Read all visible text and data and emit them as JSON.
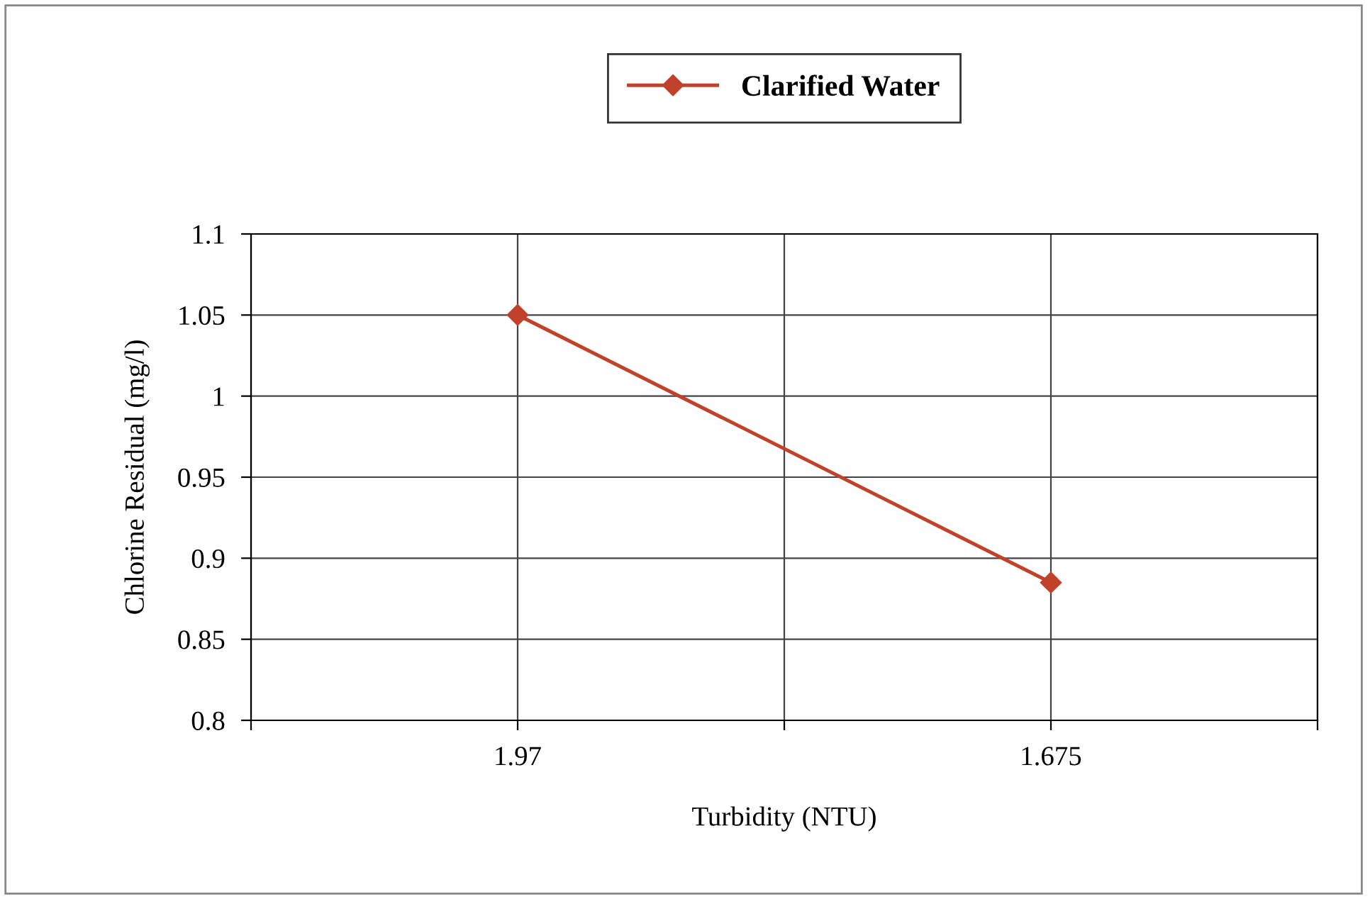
{
  "chart_data": {
    "type": "line",
    "xlabel": "Turbidity (NTU)",
    "ylabel": "Chlorine Residual (mg/l)",
    "categories": [
      null,
      "1.97",
      null,
      "1.675",
      null
    ],
    "series": [
      {
        "name": "Clarified Water",
        "color": "#c2412a",
        "values": [
          null,
          1.05,
          null,
          0.885,
          null
        ]
      }
    ],
    "ylim": [
      0.8,
      1.1
    ],
    "yticks": [
      0.8,
      0.85,
      0.9,
      0.95,
      1,
      1.05,
      1.1
    ],
    "grid": true,
    "legend": "top",
    "marker": "diamond",
    "line_style": "solid"
  }
}
